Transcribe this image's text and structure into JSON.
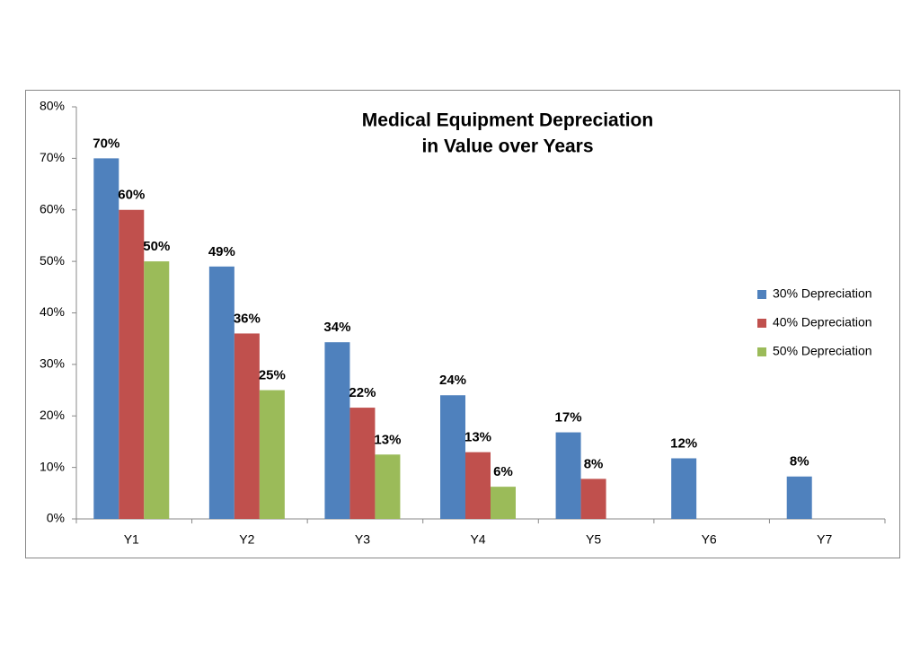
{
  "chart_data": {
    "type": "bar",
    "title": [
      "Medical Equipment Depreciation",
      "in Value over Years"
    ],
    "categories": [
      "Y1",
      "Y2",
      "Y3",
      "Y4",
      "Y5",
      "Y6",
      "Y7"
    ],
    "series": [
      {
        "name": "30% Depreciation",
        "color": "#4f81bd",
        "values": [
          70,
          49,
          34.3,
          24.01,
          16.807,
          11.765,
          8.235
        ],
        "value_labels": [
          "70%",
          "49%",
          "34%",
          "24%",
          "17%",
          "12%",
          "8%"
        ]
      },
      {
        "name": "40% Depreciation",
        "color": "#c0504d",
        "values": [
          60,
          36,
          21.6,
          12.96,
          7.776,
          null,
          null
        ],
        "value_labels": [
          "60%",
          "36%",
          "22%",
          "13%",
          "8%",
          null,
          null
        ]
      },
      {
        "name": "50% Depreciation",
        "color": "#9bbb59",
        "values": [
          50,
          25,
          12.5,
          6.25,
          null,
          null,
          null
        ],
        "value_labels": [
          "50%",
          "25%",
          "13%",
          "6%",
          null,
          null,
          null
        ]
      }
    ],
    "ylim": [
      0,
      80
    ],
    "yticks": [
      {
        "value": 0,
        "label": "0%"
      },
      {
        "value": 10,
        "label": "10%"
      },
      {
        "value": 20,
        "label": "20%"
      },
      {
        "value": 30,
        "label": "30%"
      },
      {
        "value": 40,
        "label": "40%"
      },
      {
        "value": 50,
        "label": "50%"
      },
      {
        "value": 60,
        "label": "60%"
      },
      {
        "value": 70,
        "label": "70%"
      },
      {
        "value": 80,
        "label": "80%"
      }
    ],
    "grid": false,
    "legend": "right"
  }
}
